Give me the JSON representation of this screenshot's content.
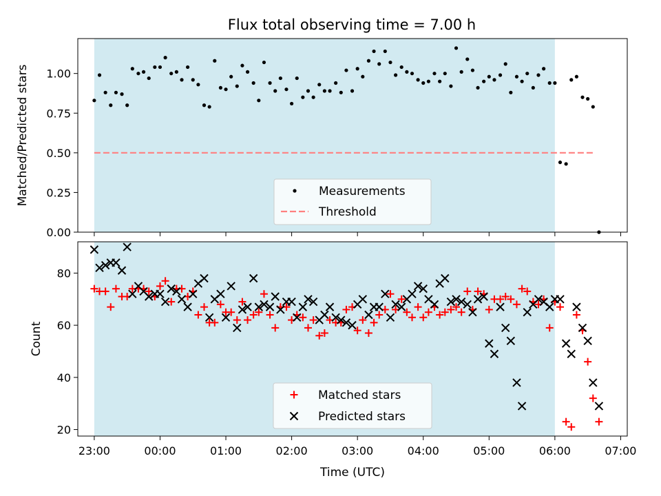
{
  "title": "Flux total observing time = 7.00 h",
  "colors": {
    "shade": "#add8e6",
    "measurement": "#000000",
    "threshold": "#ff7f7f",
    "matched": "#ff0000",
    "predicted": "#000000"
  },
  "chart_data": [
    {
      "type": "scatter",
      "ylabel": "Matched/Predicted stars",
      "xlabel": "",
      "xlim": [
        -0.25,
        8.1
      ],
      "ylim": [
        0,
        1.22
      ],
      "yticks": [
        0.0,
        0.25,
        0.5,
        0.75,
        1.0
      ],
      "ytick_labels": [
        "0.00",
        "0.25",
        "0.50",
        "0.75",
        "1.00"
      ],
      "shaded_x": [
        0,
        7
      ],
      "legend_position": "lower center",
      "legend": [
        "Measurements",
        "Threshold"
      ],
      "threshold": {
        "name": "Threshold",
        "y": 0.5,
        "x": [
          0,
          7.6
        ]
      },
      "series": [
        {
          "name": "Measurements",
          "x": [
            0.0,
            0.08,
            0.17,
            0.25,
            0.33,
            0.42,
            0.5,
            0.58,
            0.67,
            0.75,
            0.83,
            0.92,
            1.0,
            1.08,
            1.17,
            1.25,
            1.33,
            1.42,
            1.5,
            1.58,
            1.67,
            1.75,
            1.83,
            1.92,
            2.0,
            2.08,
            2.17,
            2.25,
            2.33,
            2.42,
            2.5,
            2.58,
            2.67,
            2.75,
            2.83,
            2.92,
            3.0,
            3.08,
            3.17,
            3.25,
            3.33,
            3.42,
            3.5,
            3.58,
            3.67,
            3.75,
            3.83,
            3.92,
            4.0,
            4.08,
            4.17,
            4.25,
            4.33,
            4.42,
            4.5,
            4.58,
            4.67,
            4.75,
            4.83,
            4.92,
            5.0,
            5.08,
            5.17,
            5.25,
            5.33,
            5.42,
            5.5,
            5.58,
            5.67,
            5.75,
            5.83,
            5.92,
            6.0,
            6.08,
            6.17,
            6.25,
            6.33,
            6.42,
            6.5,
            6.58,
            6.67,
            6.75,
            6.83,
            6.92,
            7.0,
            7.08,
            7.17,
            7.25,
            7.33,
            7.42,
            7.5,
            7.58,
            7.67
          ],
          "y": [
            0.83,
            0.99,
            0.88,
            0.8,
            0.88,
            0.87,
            0.8,
            1.03,
            1.0,
            1.01,
            0.97,
            1.04,
            1.04,
            1.1,
            1.0,
            1.01,
            0.96,
            1.04,
            0.96,
            0.93,
            0.8,
            0.79,
            1.08,
            0.91,
            0.9,
            0.98,
            0.92,
            1.05,
            1.01,
            0.94,
            0.83,
            1.07,
            0.94,
            0.89,
            0.97,
            0.9,
            0.81,
            0.97,
            0.85,
            0.89,
            0.85,
            0.93,
            0.89,
            0.89,
            0.94,
            0.88,
            1.02,
            0.89,
            1.03,
            0.98,
            1.08,
            1.14,
            1.06,
            1.14,
            1.07,
            0.99,
            1.04,
            1.01,
            1.0,
            0.96,
            0.94,
            0.95,
            1.0,
            0.95,
            1.0,
            0.92,
            1.16,
            1.01,
            1.09,
            1.02,
            0.91,
            0.95,
            0.98,
            0.96,
            0.99,
            1.06,
            0.88,
            0.98,
            0.95,
            1.0,
            0.91,
            0.99,
            1.03,
            0.94,
            0.94,
            0.44,
            0.43,
            0.96,
            0.98,
            0.85,
            0.84,
            0.79,
            0.0
          ]
        }
      ]
    },
    {
      "type": "scatter",
      "ylabel": "Count",
      "xlabel": "Time (UTC)",
      "xlim": [
        -0.25,
        8.1
      ],
      "ylim": [
        17.5,
        92
      ],
      "yticks": [
        20,
        40,
        60,
        80
      ],
      "ytick_labels": [
        "20",
        "40",
        "60",
        "80"
      ],
      "xticks": [
        0,
        1,
        2,
        3,
        4,
        5,
        6,
        7,
        8
      ],
      "xtick_labels": [
        "23:00",
        "00:00",
        "01:00",
        "02:00",
        "03:00",
        "04:00",
        "05:00",
        "06:00",
        "07:00"
      ],
      "shaded_x": [
        0,
        7
      ],
      "legend_position": "lower center",
      "legend": [
        "Matched stars",
        "Predicted stars"
      ],
      "series": [
        {
          "name": "Matched stars",
          "x": [
            0.0,
            0.08,
            0.17,
            0.25,
            0.33,
            0.42,
            0.5,
            0.58,
            0.67,
            0.75,
            0.83,
            0.92,
            1.0,
            1.08,
            1.17,
            1.25,
            1.33,
            1.42,
            1.5,
            1.58,
            1.67,
            1.75,
            1.83,
            1.92,
            2.0,
            2.08,
            2.17,
            2.25,
            2.33,
            2.42,
            2.5,
            2.58,
            2.67,
            2.75,
            2.83,
            2.92,
            3.0,
            3.08,
            3.17,
            3.25,
            3.33,
            3.42,
            3.5,
            3.58,
            3.67,
            3.75,
            3.83,
            3.92,
            4.0,
            4.08,
            4.17,
            4.25,
            4.33,
            4.42,
            4.5,
            4.58,
            4.67,
            4.75,
            4.83,
            4.92,
            5.0,
            5.08,
            5.17,
            5.25,
            5.33,
            5.42,
            5.5,
            5.58,
            5.67,
            5.75,
            5.83,
            5.92,
            6.0,
            6.08,
            6.17,
            6.25,
            6.33,
            6.42,
            6.5,
            6.58,
            6.67,
            6.75,
            6.83,
            6.92,
            7.0,
            7.08,
            7.17,
            7.25,
            7.33,
            7.42,
            7.5,
            7.58,
            7.67
          ],
          "y": [
            74,
            73,
            73,
            67,
            74,
            71,
            71,
            74,
            74,
            74,
            73,
            71,
            75,
            77,
            69,
            74,
            74,
            71,
            73,
            64,
            67,
            61,
            61,
            68,
            65,
            65,
            62,
            69,
            62,
            64,
            65,
            72,
            64,
            59,
            67,
            67,
            62,
            64,
            63,
            59,
            62,
            56,
            57,
            62,
            61,
            61,
            66,
            67,
            58,
            62,
            57,
            61,
            64,
            66,
            72,
            66,
            70,
            65,
            63,
            67,
            63,
            65,
            67,
            64,
            65,
            66,
            67,
            65,
            73,
            66,
            73,
            72,
            66,
            70,
            70,
            71,
            70,
            68,
            74,
            73,
            69,
            68,
            70,
            59,
            69,
            67,
            23,
            21,
            64,
            58,
            46,
            32,
            23
          ]
        },
        {
          "name": "Predicted stars",
          "x": [
            0.0,
            0.08,
            0.17,
            0.25,
            0.33,
            0.42,
            0.5,
            0.58,
            0.67,
            0.75,
            0.83,
            0.92,
            1.0,
            1.08,
            1.17,
            1.25,
            1.33,
            1.42,
            1.5,
            1.58,
            1.67,
            1.75,
            1.83,
            1.92,
            2.0,
            2.08,
            2.17,
            2.25,
            2.33,
            2.42,
            2.5,
            2.58,
            2.67,
            2.75,
            2.83,
            2.92,
            3.0,
            3.08,
            3.17,
            3.25,
            3.33,
            3.42,
            3.5,
            3.58,
            3.67,
            3.75,
            3.83,
            3.92,
            4.0,
            4.08,
            4.17,
            4.25,
            4.33,
            4.42,
            4.5,
            4.58,
            4.67,
            4.75,
            4.83,
            4.92,
            5.0,
            5.08,
            5.17,
            5.25,
            5.33,
            5.42,
            5.5,
            5.58,
            5.67,
            5.75,
            5.83,
            5.92,
            6.0,
            6.08,
            6.17,
            6.25,
            6.33,
            6.42,
            6.5,
            6.58,
            6.67,
            6.75,
            6.83,
            6.92,
            7.0,
            7.08,
            7.17,
            7.25,
            7.33,
            7.42,
            7.5,
            7.58,
            7.67
          ],
          "y": [
            89,
            82,
            83,
            84,
            84,
            81,
            90,
            72,
            75,
            73,
            71,
            72,
            72,
            69,
            74,
            73,
            70,
            67,
            72,
            76,
            78,
            63,
            70,
            72,
            63,
            75,
            59,
            66,
            67,
            78,
            67,
            68,
            67,
            71,
            66,
            69,
            69,
            63,
            67,
            70,
            69,
            62,
            64,
            67,
            63,
            62,
            61,
            60,
            68,
            70,
            64,
            67,
            67,
            72,
            63,
            68,
            67,
            70,
            72,
            75,
            74,
            70,
            68,
            76,
            78,
            69,
            70,
            69,
            68,
            65,
            70,
            71,
            53,
            49,
            67,
            59,
            54,
            38,
            29,
            65,
            68,
            70,
            69,
            67,
            70,
            70,
            53,
            49,
            67,
            59,
            54,
            38,
            29
          ]
        }
      ]
    }
  ]
}
